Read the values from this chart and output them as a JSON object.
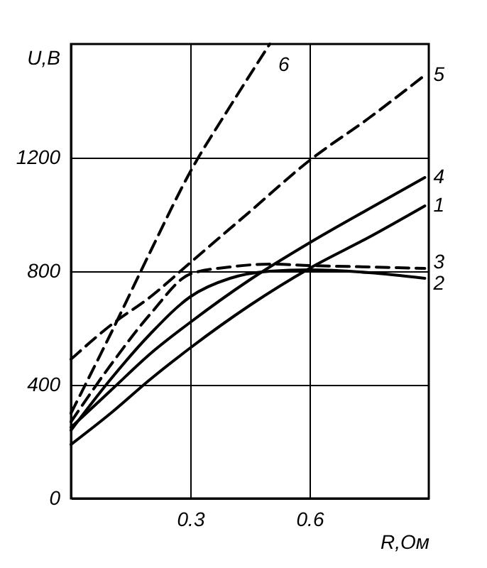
{
  "chart_data": {
    "type": "line",
    "xlabel": "R,Ом",
    "ylabel": "U,В",
    "xlim": [
      0,
      0.9
    ],
    "xticks": [
      0.3,
      0.6
    ],
    "ylim": [
      0,
      1600
    ],
    "yticks": [
      0,
      400,
      800,
      1200
    ],
    "grid": true,
    "series": [
      {
        "name": "1",
        "color": "#000000",
        "line_style": "solid",
        "x": [
          0,
          0.1,
          0.2,
          0.3,
          0.45,
          0.6,
          0.75,
          0.89
        ],
        "values": [
          190,
          300,
          420,
          530,
          680,
          810,
          920,
          1030
        ]
      },
      {
        "name": "2",
        "color": "#000000",
        "line_style": "solid",
        "x": [
          0,
          0.1,
          0.2,
          0.3,
          0.4,
          0.5,
          0.6,
          0.75,
          0.89
        ],
        "values": [
          240,
          420,
          580,
          710,
          775,
          800,
          805,
          795,
          775
        ]
      },
      {
        "name": "3",
        "color": "#000000",
        "line_style": "dashed",
        "x": [
          0,
          0.1,
          0.2,
          0.3,
          0.4,
          0.5,
          0.6,
          0.75,
          0.89
        ],
        "values": [
          270,
          470,
          650,
          790,
          815,
          825,
          820,
          815,
          810
        ]
      },
      {
        "name": "4",
        "color": "#000000",
        "line_style": "solid",
        "x": [
          0,
          0.1,
          0.2,
          0.3,
          0.45,
          0.6,
          0.75,
          0.89
        ],
        "values": [
          250,
          380,
          510,
          620,
          770,
          900,
          1020,
          1130
        ]
      },
      {
        "name": "5",
        "color": "#000000",
        "line_style": "dashed",
        "x": [
          0,
          0.1,
          0.2,
          0.3,
          0.45,
          0.6,
          0.75,
          0.89
        ],
        "values": [
          490,
          610,
          710,
          830,
          1010,
          1190,
          1340,
          1490
        ]
      },
      {
        "name": "6",
        "color": "#000000",
        "line_style": "dashed",
        "x": [
          0,
          0.1,
          0.2,
          0.3,
          0.4,
          0.5
        ],
        "values": [
          300,
          580,
          870,
          1150,
          1380,
          1600
        ]
      }
    ]
  }
}
